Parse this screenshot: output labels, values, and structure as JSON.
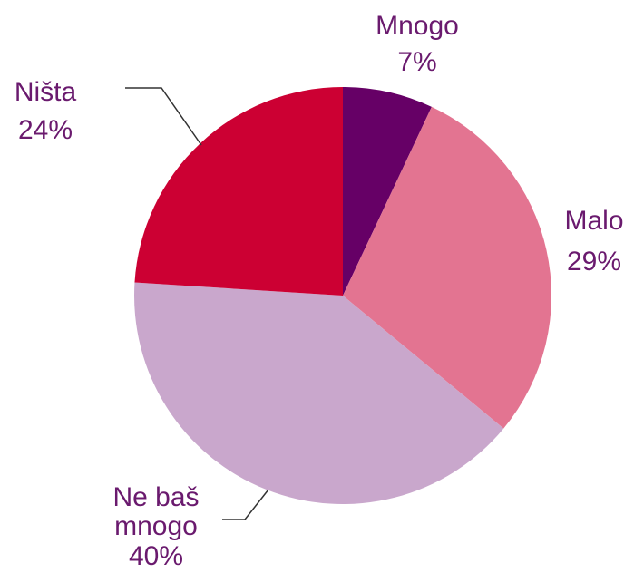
{
  "chart_data": {
    "type": "pie",
    "categories": [
      "Mnogo",
      "Malo",
      "Ne baš mnogo",
      "Ništa"
    ],
    "values": [
      7,
      29,
      40,
      24
    ],
    "value_labels": [
      "7%",
      "29%",
      "40%",
      "24%"
    ],
    "colors": [
      "#660066",
      "#e37491",
      "#c9a7cc",
      "#cc0033"
    ]
  }
}
